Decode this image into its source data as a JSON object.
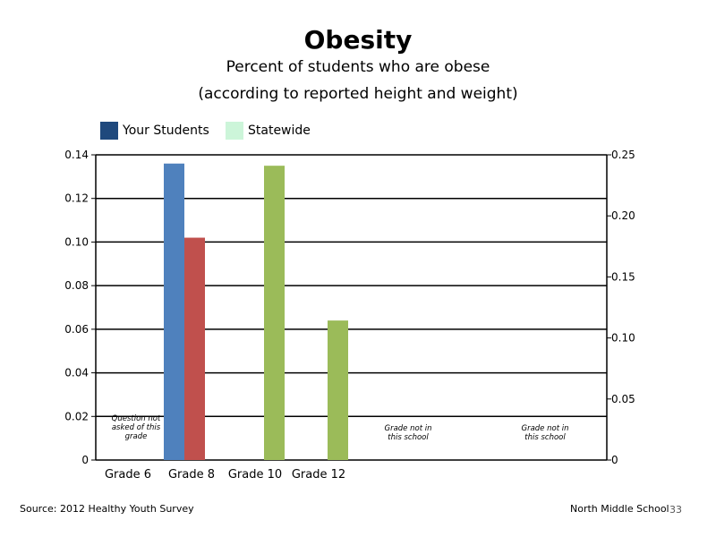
{
  "chart_data": {
    "type": "bar",
    "title": "Obesity",
    "subtitle_line1": "Percent of students who are obese",
    "subtitle_line2": "(according to reported height and weight)",
    "categories": [
      "Grade 6",
      "Grade 8",
      "Grade 10",
      "Grade 12"
    ],
    "legend": [
      {
        "name": "Your Students",
        "color": "#1f497d"
      },
      {
        "name": "Statewide",
        "color": "#ccf5d9"
      }
    ],
    "bars": [
      {
        "category": "Grade 8",
        "value": 0.136,
        "color": "#4f81bd"
      },
      {
        "category": "Grade 8",
        "value": 0.102,
        "color": "#c0504d"
      },
      {
        "category": "Grade 10",
        "value": 0.135,
        "color": "#9bbb59"
      },
      {
        "category": "Grade 12",
        "value": 0.064,
        "color": "#9bbb59"
      }
    ],
    "ylim_left": [
      0,
      0.14
    ],
    "ylim_right": [
      0,
      0.25
    ],
    "left_ticks": [
      "0",
      "0.02",
      "0.04",
      "0.06",
      "0.08",
      "0.10",
      "0.12",
      "0.14"
    ],
    "right_ticks": [
      "0",
      "0.05",
      "0.10",
      "0.15",
      "0.20",
      "0.25"
    ],
    "annotations": [
      {
        "lines": [
          "Question not",
          "asked of this",
          "grade"
        ]
      },
      {
        "lines": [
          "Grade not in",
          "this school"
        ]
      },
      {
        "lines": [
          "Grade not in",
          "this school"
        ]
      }
    ],
    "grid": true,
    "legend_position": "top-left"
  },
  "footer": {
    "source": "Source: 2012 Healthy Youth Survey",
    "school": "North Middle School",
    "page": "33"
  }
}
